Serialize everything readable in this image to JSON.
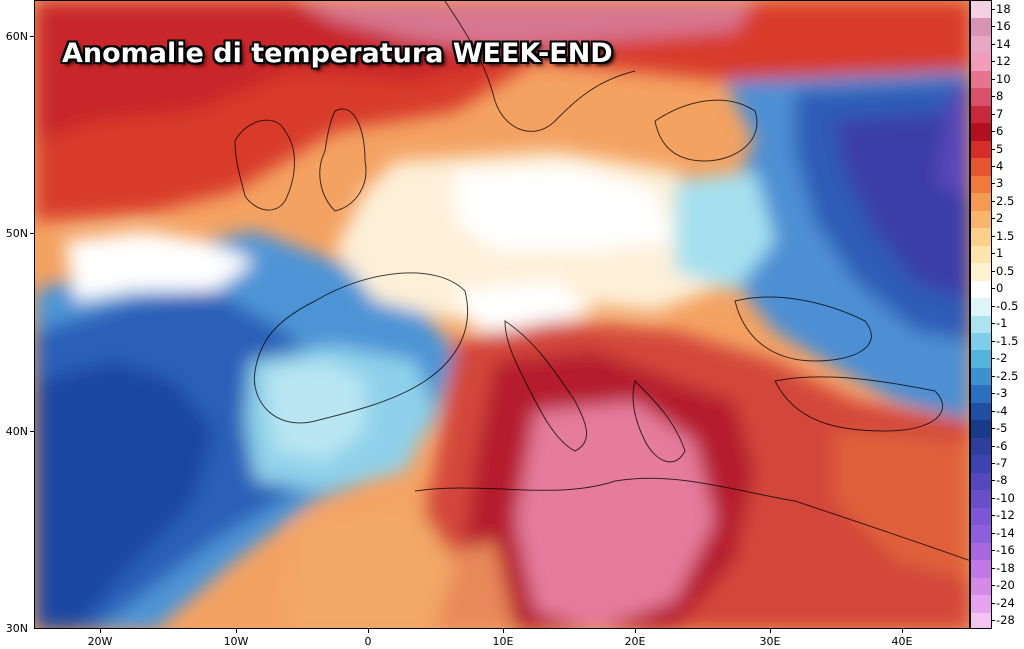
{
  "title": "Anomalie di temperatura WEEK-END",
  "lat_labels": [
    "60N",
    "50N",
    "40N",
    "30N"
  ],
  "lon_labels": [
    "20W",
    "10W",
    "0",
    "10E",
    "20E",
    "30E",
    "40E"
  ],
  "colorbar": {
    "labels": [
      "18",
      "16",
      "14",
      "12",
      "10",
      "8",
      "7",
      "6",
      "5",
      "4",
      "3",
      "2.5",
      "2",
      "1.5",
      "1",
      "0.5",
      "0",
      "-0.5",
      "-1",
      "-1.5",
      "-2",
      "-2.5",
      "-3",
      "-4",
      "-5",
      "-6",
      "-7",
      "-8",
      "-10",
      "-12",
      "-14",
      "-16",
      "-18",
      "-20",
      "-24",
      "-28"
    ],
    "colors": [
      "#f2d0e2",
      "#d894b4",
      "#e8a8c4",
      "#f29bbd",
      "#e8738f",
      "#d8506a",
      "#c8283c",
      "#b01020",
      "#d62e26",
      "#e6552f",
      "#ef7a3c",
      "#f49a52",
      "#f7b66c",
      "#fbd08a",
      "#fde4aa",
      "#fdf1cf",
      "#ffffff",
      "#dff4f8",
      "#a9e4ef",
      "#7ccfe6",
      "#55b4dc",
      "#3c92cf",
      "#2b6fbf",
      "#1f4fa3",
      "#173a8a",
      "#2e3e9c",
      "#3d44b0",
      "#5548bc",
      "#6a4ec8",
      "#7c56d4",
      "#8e5fdc",
      "#a668e0",
      "#bf78e6",
      "#d58ae8",
      "#e6a4ee",
      "#f3c4f2"
    ]
  },
  "legend_colors": {
    "ocean_cool": "#2f64c0",
    "neutral": "#fbfbf3",
    "warm": "#e76b3c",
    "hot": "#c21f2c",
    "extreme": "#e58aaa"
  },
  "ticks_hint": "map-grid"
}
